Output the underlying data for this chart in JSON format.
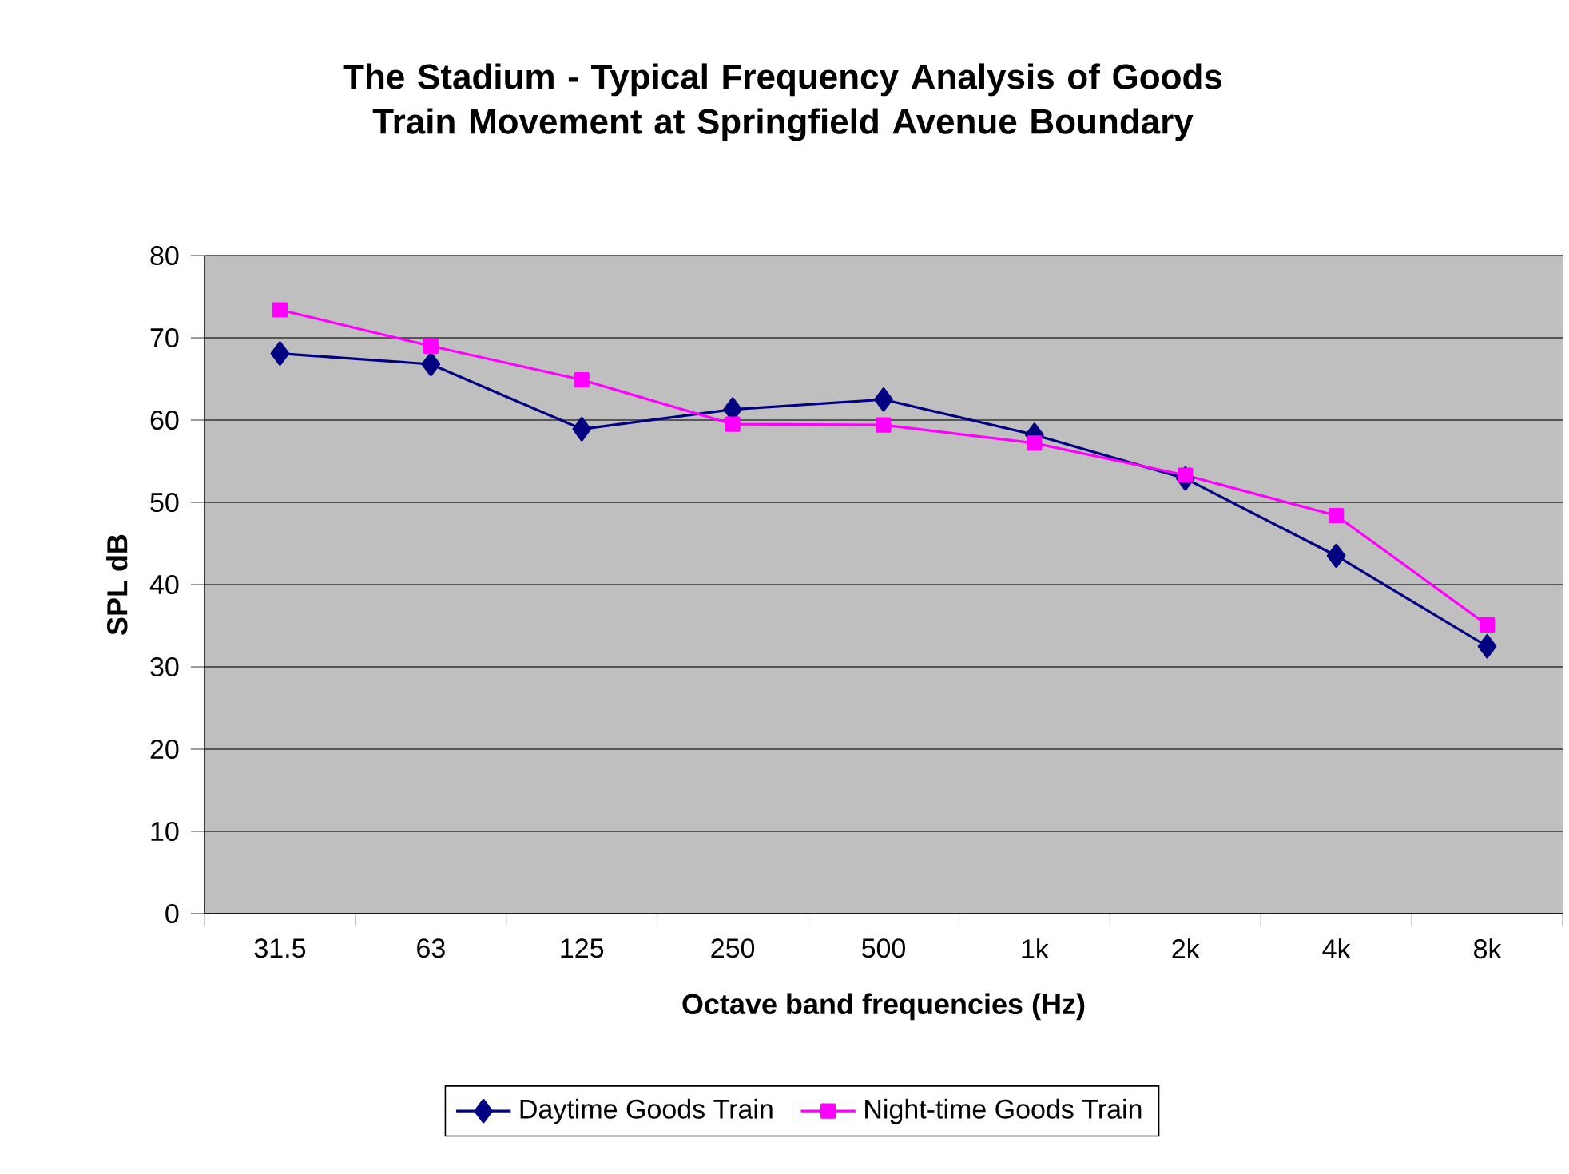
{
  "chart_data": {
    "type": "line",
    "title": "The Stadium - Typical Frequency Analysis of Goods Train Movement at Springfield Avenue Boundary",
    "xlabel": "Octave band frequencies (Hz)",
    "ylabel": "SPL dB",
    "categories": [
      "31.5",
      "63",
      "125",
      "250",
      "500",
      "1k",
      "2k",
      "4k",
      "8k"
    ],
    "series": [
      {
        "name": "Daytime Goods Train",
        "color": "#000080",
        "marker": "diamond",
        "values": [
          68.1,
          66.8,
          58.9,
          61.3,
          62.5,
          58.2,
          52.9,
          43.5,
          32.5
        ]
      },
      {
        "name": "Night-time Goods Train",
        "color": "#ff00ff",
        "marker": "square",
        "values": [
          73.4,
          69.0,
          64.9,
          59.5,
          59.4,
          57.2,
          53.3,
          48.4,
          35.1
        ]
      }
    ],
    "ylim": [
      0,
      80
    ],
    "yticks": [
      0,
      10,
      20,
      30,
      40,
      50,
      60,
      70,
      80
    ],
    "grid": "y",
    "legend": "bottom",
    "line_style": "solid"
  }
}
